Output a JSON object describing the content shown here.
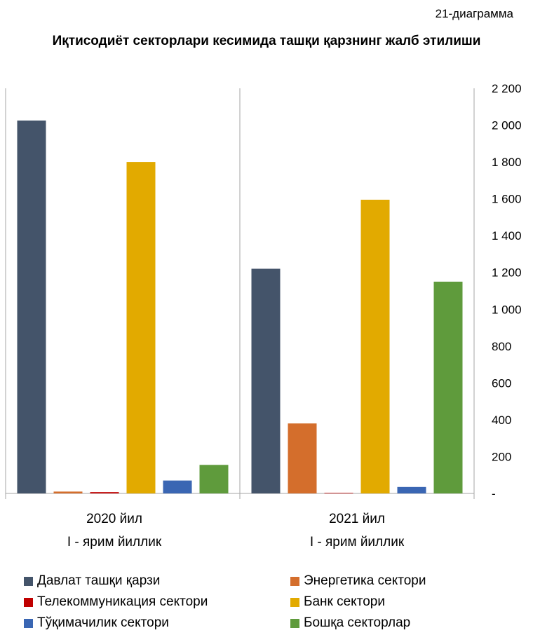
{
  "diagram_number": "21-диаграмма",
  "chart_data": {
    "type": "bar",
    "title": "Иқтисодиёт секторлари кесимида ташқи қарзнинг жалб этилиши",
    "categories": [
      [
        "2020 йил",
        "I - ярим йиллик"
      ],
      [
        "2021 йил",
        "I - ярим йиллик"
      ]
    ],
    "ylim": [
      0,
      2200
    ],
    "yticks": [
      0,
      200,
      400,
      600,
      800,
      1000,
      1200,
      1400,
      1600,
      1800,
      2000,
      2200
    ],
    "ytick_labels": [
      "-",
      "200",
      "400",
      "600",
      "800",
      "1 000",
      "1 200",
      "1 400",
      "1 600",
      "1 800",
      "2 000",
      "2 200"
    ],
    "y_axis_side": "right",
    "grid": false,
    "legend_position": "bottom",
    "series": [
      {
        "name": "Давлат ташқи қарзи",
        "color": "#44546A",
        "values": [
          2025,
          1220
        ]
      },
      {
        "name": "Энергетика сектори",
        "color": "#D46E2C",
        "values": [
          10,
          380
        ]
      },
      {
        "name": "Телекоммуникация сектори",
        "color": "#C00000",
        "values": [
          7,
          3
        ]
      },
      {
        "name": "Банк сектори",
        "color": "#E2AA00",
        "values": [
          1800,
          1595
        ]
      },
      {
        "name": "Тўқимачилик сектори",
        "color": "#3A66B3",
        "values": [
          70,
          35
        ]
      },
      {
        "name": "Бошқа секторлар",
        "color": "#5F9B3C",
        "values": [
          155,
          1150
        ]
      }
    ]
  }
}
